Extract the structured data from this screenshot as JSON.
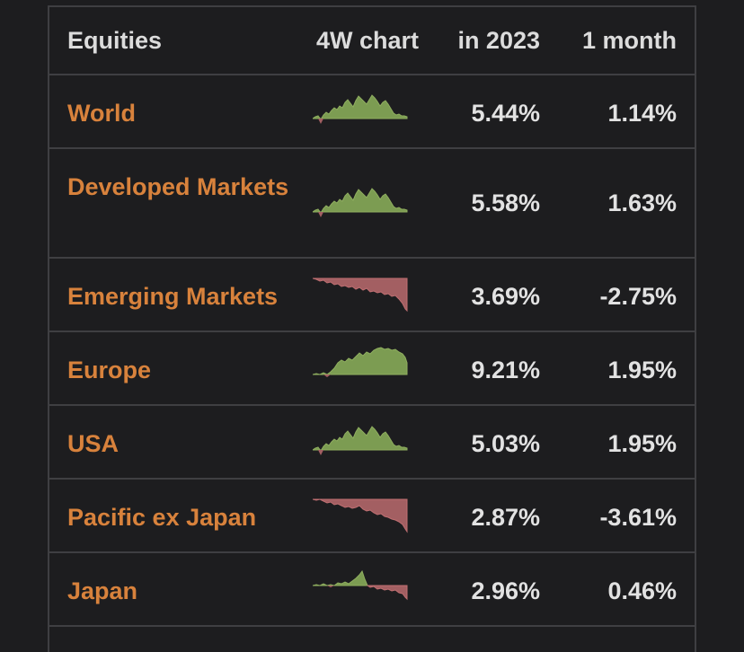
{
  "header": {
    "equities": "Equities",
    "chart": "4W chart",
    "year": "in 2023",
    "month": "1 month"
  },
  "rows": [
    {
      "name": "World",
      "ytd": "5.44%",
      "month": "1.14%",
      "trend": "up"
    },
    {
      "name": "Developed Markets",
      "ytd": "5.58%",
      "month": "1.63%",
      "trend": "up"
    },
    {
      "name": "Emerging Markets",
      "ytd": "3.69%",
      "month": "-2.75%",
      "trend": "down"
    },
    {
      "name": "Europe",
      "ytd": "9.21%",
      "month": "1.95%",
      "trend": "up"
    },
    {
      "name": "USA",
      "ytd": "5.03%",
      "month": "1.95%",
      "trend": "up"
    },
    {
      "name": "Pacific ex Japan",
      "ytd": "2.87%",
      "month": "-3.61%",
      "trend": "down"
    },
    {
      "name": "Japan",
      "ytd": "2.96%",
      "month": "0.46%",
      "trend": "mixed"
    }
  ],
  "colors": {
    "name": "#d8823c",
    "up_fill": "#7c9c52",
    "down_fill": "#a35f62",
    "border": "#3f3f42",
    "background": "#1d1d1f"
  }
}
